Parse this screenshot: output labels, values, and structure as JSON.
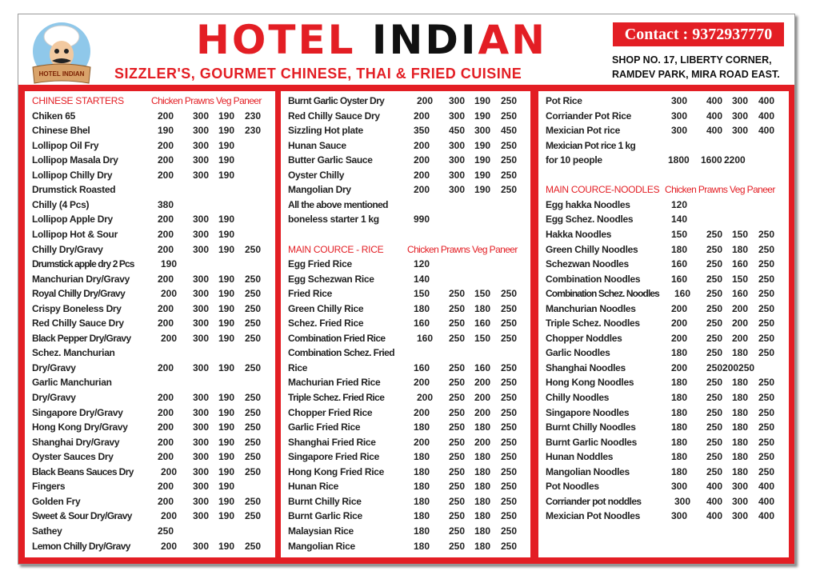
{
  "header": {
    "logo_text": "HOTEL INDIAN",
    "title_red": "HOTEL",
    "title_black": " INDI",
    "title_red2": "AN",
    "subtitle": "SIZZLER'S, GOURMET CHINESE, THAI & FRIED CUISINE",
    "contact": "Contact : 9372937770",
    "address_line1": "SHOP NO. 17, LIBERTY CORNER,",
    "address_line2": "RAMDEV PARK, MIRA ROAD EAST."
  },
  "colors": {
    "accent": "#e31e24",
    "text": "#222222"
  },
  "columns": [
    [
      {
        "type": "header",
        "name": "CHINESE STARTERS",
        "cols": "Chicken Prawns Veg Paneer"
      },
      {
        "name": "Chiken 65",
        "prices": [
          "200",
          "300",
          "190",
          "230"
        ]
      },
      {
        "name": "Chinese Bhel",
        "prices": [
          "190",
          "300",
          "190",
          "230"
        ]
      },
      {
        "name": "Lollipop Oil Fry",
        "prices": [
          "200",
          "300",
          "190",
          ""
        ]
      },
      {
        "name": "Lollipop Masala Dry",
        "prices": [
          "200",
          "300",
          "190",
          ""
        ]
      },
      {
        "name": "Lollipop Chilly Dry",
        "prices": [
          "200",
          "300",
          "190",
          ""
        ]
      },
      {
        "name": "Drumstick Roasted",
        "prices": [
          "",
          "",
          "",
          ""
        ]
      },
      {
        "name": "Chilly (4 Pcs)",
        "prices": [
          "380",
          "",
          "",
          ""
        ]
      },
      {
        "name": "Lollipop Apple Dry",
        "prices": [
          "200",
          "300",
          "190",
          ""
        ]
      },
      {
        "name": "Lollipop Hot & Sour",
        "prices": [
          "200",
          "300",
          "190",
          ""
        ]
      },
      {
        "name": "Chilly Dry/Gravy",
        "prices": [
          "200",
          "300",
          "190",
          "250"
        ]
      },
      {
        "name": "Drumstick apple dry 2 Pcs",
        "prices": [
          "190",
          "",
          "",
          ""
        ]
      },
      {
        "name": "Manchurian Dry/Gravy",
        "prices": [
          "200",
          "300",
          "190",
          "250"
        ]
      },
      {
        "name": "Royal Chilly Dry/Gravy",
        "prices": [
          "200",
          "300",
          "190",
          "250"
        ]
      },
      {
        "name": "Crispy Boneless Dry",
        "prices": [
          "200",
          "300",
          "190",
          "250"
        ]
      },
      {
        "name": "Red Chilly Sauce Dry",
        "prices": [
          "200",
          "300",
          "190",
          "250"
        ]
      },
      {
        "name": "Black Pepper Dry/Gravy",
        "prices": [
          "200",
          "300",
          "190",
          "250"
        ]
      },
      {
        "name": "Schez. Manchurian",
        "prices": [
          "",
          "",
          "",
          ""
        ]
      },
      {
        "name": "Dry/Gravy",
        "prices": [
          "200",
          "300",
          "190",
          "250"
        ]
      },
      {
        "name": "Garlic Manchurian",
        "prices": [
          "",
          "",
          "",
          ""
        ]
      },
      {
        "name": "Dry/Gravy",
        "prices": [
          "200",
          "300",
          "190",
          "250"
        ]
      },
      {
        "name": "Singapore Dry/Gravy",
        "prices": [
          "200",
          "300",
          "190",
          "250"
        ]
      },
      {
        "name": "Hong Kong Dry/Gravy",
        "prices": [
          "200",
          "300",
          "190",
          "250"
        ]
      },
      {
        "name": "Shanghai Dry/Gravy",
        "prices": [
          "200",
          "300",
          "190",
          "250"
        ]
      },
      {
        "name": "Oyster Sauces Dry",
        "prices": [
          "200",
          "300",
          "190",
          "250"
        ]
      },
      {
        "name": "Black Beans Sauces Dry",
        "prices": [
          "200",
          "300",
          "190",
          "250"
        ]
      },
      {
        "name": "Fingers",
        "prices": [
          "200",
          "300",
          "190",
          ""
        ]
      },
      {
        "name": "Golden Fry",
        "prices": [
          "200",
          "300",
          "190",
          "250"
        ]
      },
      {
        "name": "Sweet & Sour Dry/Gravy",
        "prices": [
          "200",
          "300",
          "190",
          "250"
        ]
      },
      {
        "name": "Sathey",
        "prices": [
          "250",
          "",
          "",
          ""
        ]
      },
      {
        "name": "Lemon Chilly Dry/Gravy",
        "prices": [
          "200",
          "300",
          "190",
          "250"
        ]
      }
    ],
    [
      {
        "name": "Burnt Garlic Oyster Dry",
        "prices": [
          "200",
          "300",
          "190",
          "250"
        ]
      },
      {
        "name": "Red Chilly Sauce Dry",
        "prices": [
          "200",
          "300",
          "190",
          "250"
        ]
      },
      {
        "name": "Sizzling Hot plate",
        "prices": [
          "350",
          "450",
          "300",
          "450"
        ]
      },
      {
        "name": "Hunan Sauce",
        "prices": [
          "200",
          "300",
          "190",
          "250"
        ]
      },
      {
        "name": "Butter Garlic Sauce",
        "prices": [
          "200",
          "300",
          "190",
          "250"
        ]
      },
      {
        "name": "Oyster Chilly",
        "prices": [
          "200",
          "300",
          "190",
          "250"
        ]
      },
      {
        "name": "Mangolian Dry",
        "prices": [
          "200",
          "300",
          "190",
          "250"
        ]
      },
      {
        "name": "All the above mentioned",
        "prices": [
          "",
          "",
          "",
          ""
        ]
      },
      {
        "name": "boneless starter 1 kg",
        "prices": [
          "990",
          "",
          "",
          ""
        ]
      },
      {
        "type": "blank"
      },
      {
        "type": "header",
        "name": "MAIN COURCE - RICE",
        "cols": "Chicken Prawns Veg Paneer"
      },
      {
        "name": "Egg Fried Rice",
        "prices": [
          "120",
          "",
          "",
          ""
        ]
      },
      {
        "name": "Egg Schezwan Rice",
        "prices": [
          "140",
          "",
          "",
          ""
        ]
      },
      {
        "name": "Fried Rice",
        "prices": [
          "150",
          "250",
          "150",
          "250"
        ]
      },
      {
        "name": "Green Chilly Rice",
        "prices": [
          "180",
          "250",
          "180",
          "250"
        ]
      },
      {
        "name": "Schez. Fried Rice",
        "prices": [
          "160",
          "250",
          "160",
          "250"
        ]
      },
      {
        "name": "Combination Fried Rice",
        "prices": [
          "160",
          "250",
          "150",
          "250"
        ]
      },
      {
        "name": "Combination Schez. Fried",
        "prices": [
          "",
          "",
          "",
          ""
        ]
      },
      {
        "name": "Rice",
        "prices": [
          "160",
          "250",
          "160",
          "250"
        ]
      },
      {
        "name": "Machurian Fried Rice",
        "prices": [
          "200",
          "250",
          "200",
          "250"
        ]
      },
      {
        "name": "Triple Schez. Fried Rice",
        "prices": [
          "200",
          "250",
          "200",
          "250"
        ]
      },
      {
        "name": "Chopper Fried Rice",
        "prices": [
          "200",
          "250",
          "200",
          "250"
        ]
      },
      {
        "name": "Garlic Fried Rice",
        "prices": [
          "180",
          "250",
          "180",
          "250"
        ]
      },
      {
        "name": "Shanghai Fried Rice",
        "prices": [
          "200",
          "250",
          "200",
          "250"
        ]
      },
      {
        "name": "Singapore Fried Rice",
        "prices": [
          "180",
          "250",
          "180",
          "250"
        ]
      },
      {
        "name": "Hong Kong Fried Rice",
        "prices": [
          "180",
          "250",
          "180",
          "250"
        ]
      },
      {
        "name": "Hunan Rice",
        "prices": [
          "180",
          "250",
          "180",
          "250"
        ]
      },
      {
        "name": "Burnt Chilly Rice",
        "prices": [
          "180",
          "250",
          "180",
          "250"
        ]
      },
      {
        "name": "Burnt Garlic Rice",
        "prices": [
          "180",
          "250",
          "180",
          "250"
        ]
      },
      {
        "name": "Malaysian Rice",
        "prices": [
          "180",
          "250",
          "180",
          "250"
        ]
      },
      {
        "name": "Mangolian Rice",
        "prices": [
          "180",
          "250",
          "180",
          "250"
        ]
      }
    ],
    [
      {
        "name": "Pot Rice",
        "prices": [
          "300",
          "400",
          "300",
          "400"
        ]
      },
      {
        "name": "Corriander Pot Rice",
        "prices": [
          "300",
          "400",
          "300",
          "400"
        ]
      },
      {
        "name": "Mexician Pot rice",
        "prices": [
          "300",
          "400",
          "300",
          "400"
        ]
      },
      {
        "name": "Mexician Pot rice 1 kg",
        "prices": [
          "",
          "",
          "",
          ""
        ]
      },
      {
        "name": "for 10 people",
        "prices": [
          "1800",
          "1600",
          "2200",
          ""
        ]
      },
      {
        "type": "blank"
      },
      {
        "type": "header",
        "name": "MAIN COURCE-NOODLES",
        "cols": "Chicken Prawns Veg Paneer"
      },
      {
        "name": "Egg hakka Noodles",
        "prices": [
          "120",
          "",
          "",
          ""
        ]
      },
      {
        "name": "Egg Schez. Noodles",
        "prices": [
          "140",
          "",
          "",
          ""
        ]
      },
      {
        "name": "Hakka Noodles",
        "prices": [
          "150",
          "250",
          "150",
          "250"
        ]
      },
      {
        "name": "Green Chilly Noodles",
        "prices": [
          "180",
          "250",
          "180",
          "250"
        ]
      },
      {
        "name": "Schezwan Noodles",
        "prices": [
          "160",
          "250",
          "160",
          "250"
        ]
      },
      {
        "name": "Combination Noodles",
        "prices": [
          "160",
          "250",
          "150",
          "250"
        ]
      },
      {
        "name": "Combination Schez. Noodles",
        "prices": [
          "160",
          "250",
          "160",
          "250"
        ]
      },
      {
        "name": "Manchurian Noodles",
        "prices": [
          "200",
          "250",
          "200",
          "250"
        ]
      },
      {
        "name": "Triple Schez. Noodles",
        "prices": [
          "200",
          "250",
          "200",
          "250"
        ]
      },
      {
        "name": "Chopper Noddles",
        "prices": [
          "200",
          "250",
          "200",
          "250"
        ]
      },
      {
        "name": "Garlic Noodles",
        "prices": [
          "180",
          "250",
          "180",
          "250"
        ]
      },
      {
        "name": "Shanghai Noodles",
        "prices": [
          "200",
          "250200250",
          "",
          ""
        ]
      },
      {
        "name": "Hong Kong Noodles",
        "prices": [
          "180",
          "250",
          "180",
          "250"
        ]
      },
      {
        "name": "Chilly Noodles",
        "prices": [
          "180",
          "250",
          "180",
          "250"
        ]
      },
      {
        "name": "Singapore Noodles",
        "prices": [
          "180",
          "250",
          "180",
          "250"
        ]
      },
      {
        "name": "Burnt Chilly Noodles",
        "prices": [
          "180",
          "250",
          "180",
          "250"
        ]
      },
      {
        "name": "Burnt Garlic Noodles",
        "prices": [
          "180",
          "250",
          "180",
          "250"
        ]
      },
      {
        "name": "Hunan Noddles",
        "prices": [
          "180",
          "250",
          "180",
          "250"
        ]
      },
      {
        "name": "Mangolian Noodles",
        "prices": [
          "180",
          "250",
          "180",
          "250"
        ]
      },
      {
        "name": "Pot Noodles",
        "prices": [
          "300",
          "400",
          "300",
          "400"
        ]
      },
      {
        "name": "Corriander pot noddles",
        "prices": [
          "300",
          "400",
          "300",
          "400"
        ]
      },
      {
        "name": "Mexician Pot Noodles",
        "prices": [
          "300",
          "400",
          "300",
          "400"
        ]
      }
    ]
  ]
}
